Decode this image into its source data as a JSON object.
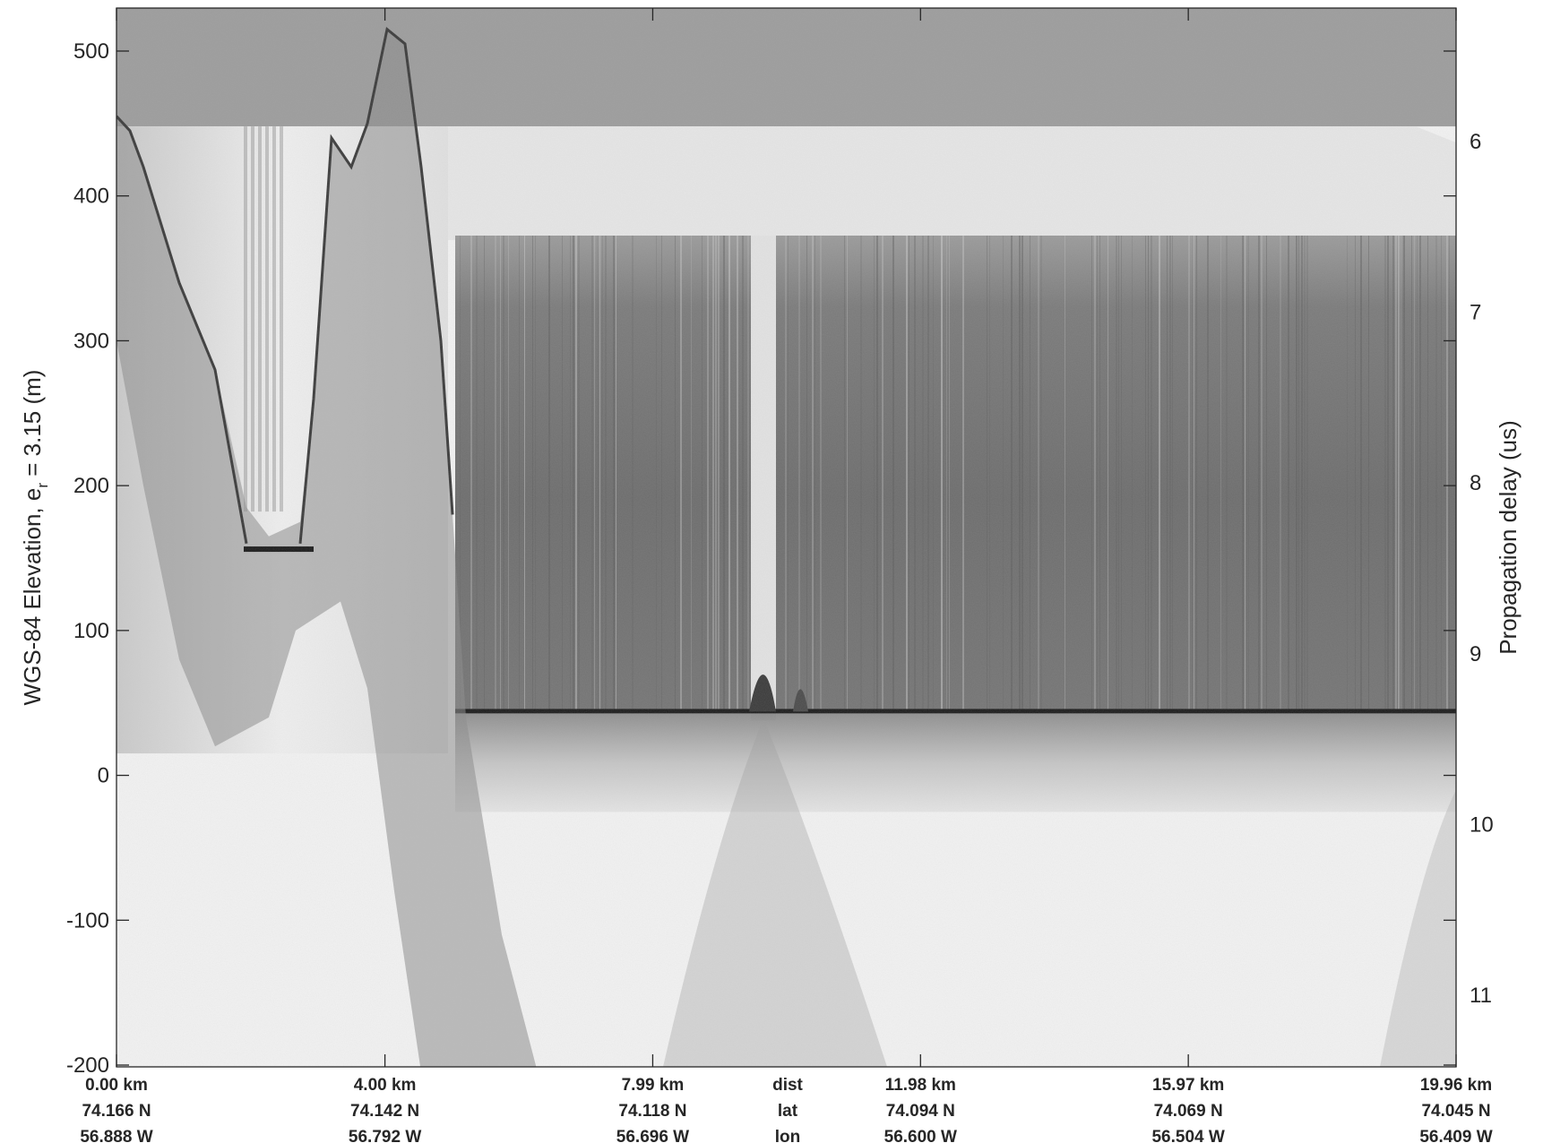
{
  "chart_data": {
    "type": "heatmap",
    "title": "",
    "colormap": "grayscale radargram echogram",
    "ylabel_left_main": "WGS-84 Elevation, e",
    "ylabel_left_sub": "r",
    "ylabel_left_suffix": " = 3.15 (m)",
    "ylabel_right": "Propagation delay (us)",
    "y_left": {
      "ticks": [
        500,
        400,
        300,
        200,
        100,
        0,
        -100,
        -200
      ],
      "range": [
        -205,
        530
      ]
    },
    "y_right": {
      "ticks": [
        6,
        7,
        8,
        9,
        10,
        11
      ]
    },
    "x_ticks": [
      {
        "dist": "0.00 km",
        "lat": "74.166 N",
        "lon": "56.888 W"
      },
      {
        "dist": "4.00 km",
        "lat": "74.142 N",
        "lon": "56.792 W"
      },
      {
        "dist": "7.99 km",
        "lat": "74.118 N",
        "lon": "56.696 W"
      },
      {
        "dist": "11.98 km",
        "lat": "74.094 N",
        "lon": "56.600 W"
      },
      {
        "dist": "15.97 km",
        "lat": "74.069 N",
        "lon": "56.504 W"
      },
      {
        "dist": "19.96 km",
        "lat": "74.045 N",
        "lon": "56.409 W"
      }
    ],
    "row_labels": {
      "dist": "dist",
      "lat": "lat",
      "lon": "lon"
    },
    "x_range_km": [
      0,
      19.96
    ],
    "features": {
      "surface_elevation_m": 448,
      "bed_elevation_m": 44,
      "peak_elevation_m": 515,
      "air_gray": "#9c9c9c",
      "ice_gray": "#e6e6e6",
      "deep_gray": "#f2f2f2",
      "band_gray": "#6e6e6e"
    }
  }
}
